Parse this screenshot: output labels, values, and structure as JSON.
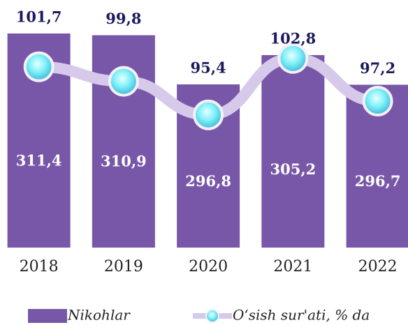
{
  "chart_data": {
    "type": "combo",
    "categories": [
      "2018",
      "2019",
      "2020",
      "2021",
      "2022"
    ],
    "series": [
      {
        "name": "Nikohlar",
        "type": "bar",
        "color": "#7857a8",
        "values": [
          311.4,
          310.9,
          296.8,
          305.2,
          296.7
        ],
        "value_labels": [
          "311,4",
          "310,9",
          "296,8",
          "305,2",
          "296,7"
        ]
      },
      {
        "name": "O‘sish sur'ati, % da",
        "type": "line",
        "axis": "y2",
        "color": "#d6c9ea",
        "values": [
          101.7,
          99.8,
          95.4,
          102.8,
          97.2
        ],
        "value_labels": [
          "101,7",
          "99,8",
          "95,4",
          "102,8",
          "97,2"
        ]
      }
    ],
    "ylim": [
      250,
      320
    ],
    "y2lim": [
      78,
      110
    ]
  }
}
